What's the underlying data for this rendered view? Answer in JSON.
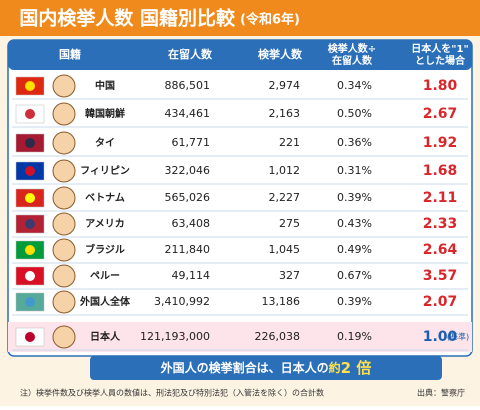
{
  "title": "国内検挙人数 国籍別比較",
  "year": "(令和6年)",
  "header": [
    [
      "国籍"
    ],
    [
      "在留人数"
    ],
    [
      "検挙人数"
    ],
    [
      "検挙人数÷",
      "在留人数"
    ],
    [
      "日本人を\"1\"",
      "とした場合"
    ]
  ],
  "rows": [
    [
      "中国",
      "886,501",
      "2,974",
      "0.34%",
      "1.80"
    ],
    [
      "韓国朝鮮",
      "434,461",
      "2,163",
      "0.50%",
      "2.67"
    ],
    [
      "タイ",
      "61,771",
      "221",
      "0.36%",
      "1.92"
    ],
    [
      "フィリピン",
      "322,046",
      "1,012",
      "0.31%",
      "1.68"
    ],
    [
      "ベトナム",
      "565,026",
      "2,227",
      "0.39%",
      "2.11"
    ],
    [
      "アメリカ",
      "63,408",
      "275",
      "0.43%",
      "2.33"
    ],
    [
      "ブラジル",
      "211,840",
      "1,045",
      "0.49%",
      "2.64"
    ],
    [
      "ペルー",
      "49,114",
      "327",
      "0.67%",
      "3.57"
    ],
    [
      "外国人全体",
      "3,410,992",
      "13,186",
      "0.39%",
      "2.07"
    ]
  ],
  "japan": {
    "cells": [
      "日本人",
      "121,193,000",
      "226,038",
      "0.19%",
      "1.00"
    ],
    "base": "(基準)"
  },
  "callout": [
    "外国人の検挙割合は、日本人の",
    "約",
    "2 倍"
  ],
  "note": "注）検挙件数及び検挙人員の数値は、刑法犯及び特別法犯（入管法を除く）の合計数",
  "source": "出典：警察庁"
}
